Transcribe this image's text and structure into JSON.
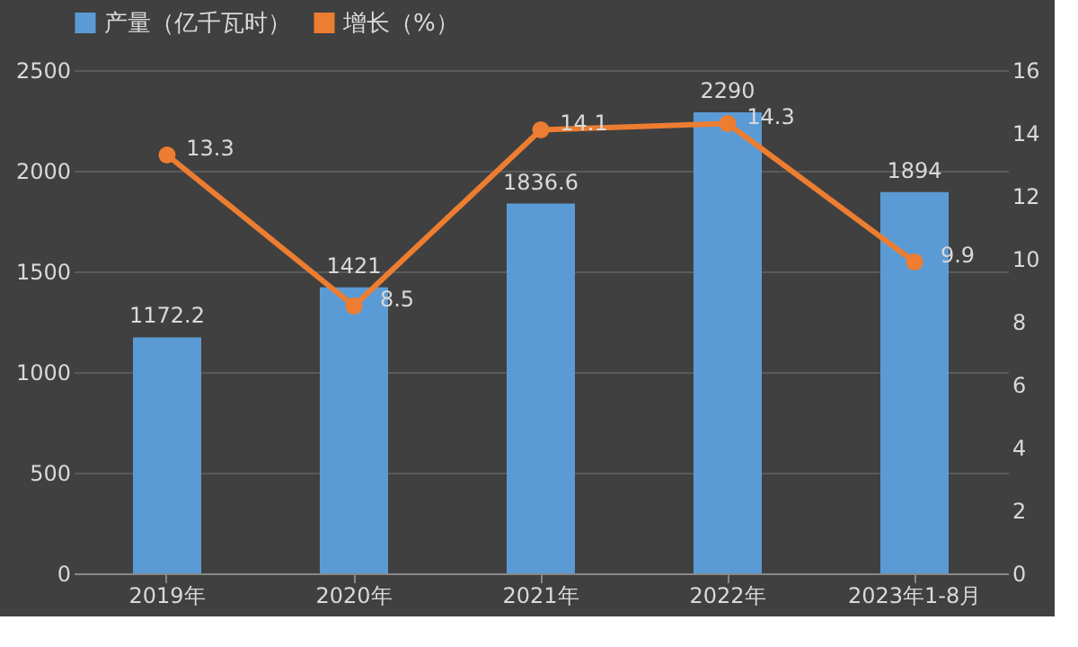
{
  "chart_data": {
    "type": "bar",
    "categories": [
      "2019年",
      "2020年",
      "2021年",
      "2022年",
      "2023年1-8月"
    ],
    "series": [
      {
        "name": "产量（亿千瓦时）",
        "color": "#5b9bd5",
        "values": [
          1172.2,
          1421,
          1836.6,
          2290,
          1894
        ]
      },
      {
        "name": "增长（%）",
        "type": "line",
        "color": "#ed7d31",
        "axis": "y2",
        "marker": "circle",
        "values": [
          13.3,
          8.5,
          14.1,
          14.3,
          9.9
        ]
      }
    ],
    "ylim": [
      0,
      2500
    ],
    "yticks": [
      0,
      500,
      1000,
      1500,
      2000,
      2500
    ],
    "y2lim": [
      0,
      16
    ],
    "y2ticks": [
      0,
      2,
      4,
      6,
      8,
      10,
      12,
      14,
      16
    ],
    "grid": "y",
    "legend": "top",
    "data_labels": true
  }
}
